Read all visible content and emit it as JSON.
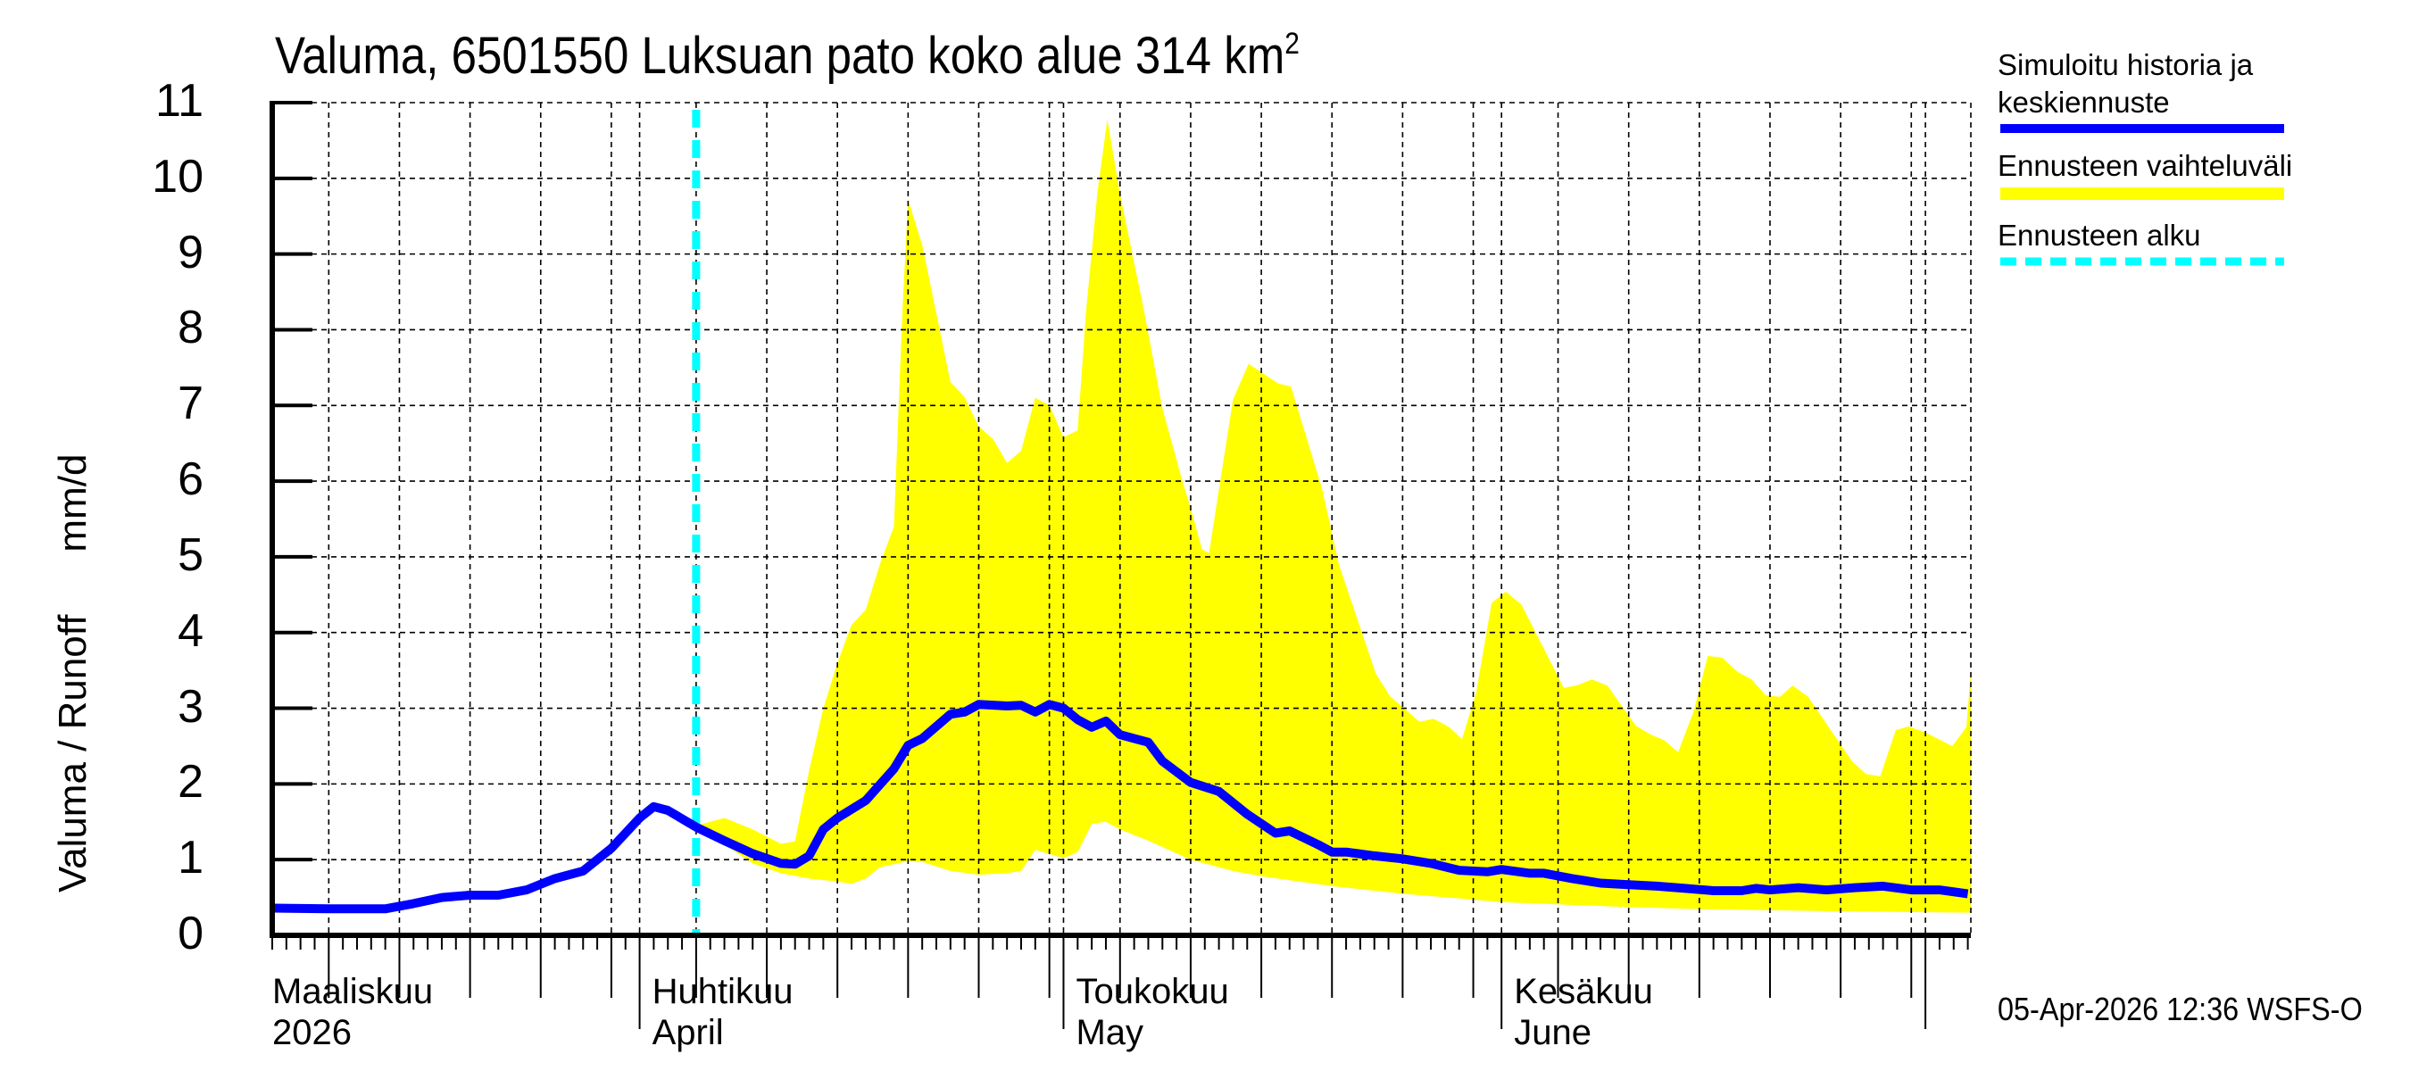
{
  "title": {
    "text": "Valuma, 6501550 Luksuan pato koko alue 314 km",
    "sup": "2"
  },
  "y_axis": {
    "label": "Valuma / Runoff",
    "unit": "mm/d",
    "ticks": [
      "0",
      "1",
      "2",
      "3",
      "4",
      "5",
      "6",
      "7",
      "8",
      "9",
      "10",
      "11"
    ]
  },
  "x_axis": {
    "months": [
      {
        "fi": "Maaliskuu",
        "en": "2026",
        "day": 0
      },
      {
        "fi": "Huhtikuu",
        "en": "April",
        "day": 26
      },
      {
        "fi": "Toukokuu",
        "en": "May",
        "day": 56
      },
      {
        "fi": "Kesäkuu",
        "en": "June",
        "day": 87
      }
    ]
  },
  "legend": {
    "items": [
      {
        "label_line1": "Simuloitu historia ja",
        "label_line2": "keskiennuste",
        "color": "#0000ff",
        "style": "solid"
      },
      {
        "label_line1": "Ennusteen vaihteluväli",
        "color": "#ffff00",
        "style": "band"
      },
      {
        "label_line1": "Ennusteen alku",
        "color": "#00ffff",
        "style": "dashed"
      }
    ]
  },
  "footer": {
    "timestamp": "05-Apr-2026 12:36 WSFS-O"
  },
  "colors": {
    "median": "#0000ff",
    "band": "#ffff00",
    "forecast_start": "#00ffff",
    "grid": "#000000"
  },
  "chart_data": {
    "type": "line",
    "title": "Valuma, 6501550 Luksuan pato koko alue 314 km²",
    "xlabel": "",
    "ylabel": "Valuma / Runoff mm/d",
    "ylim": [
      0,
      11
    ],
    "x_start_date": "2026-03-06",
    "x_end_date": "2026-07-03",
    "x_unit": "days since 2026-03-06",
    "xlim": [
      0,
      120
    ],
    "forecast_start_day": 30,
    "forecast_start_date": "2026-04-05",
    "grid": true,
    "legend_position": "right",
    "series": [
      {
        "name": "Simuloitu historia ja keskiennuste",
        "type": "line",
        "points": [
          [
            0,
            0.36
          ],
          [
            4,
            0.35
          ],
          [
            8,
            0.35
          ],
          [
            10,
            0.42
          ],
          [
            12,
            0.5
          ],
          [
            14,
            0.53
          ],
          [
            16,
            0.53
          ],
          [
            18,
            0.6
          ],
          [
            20,
            0.75
          ],
          [
            22,
            0.85
          ],
          [
            24,
            1.15
          ],
          [
            25,
            1.35
          ],
          [
            26,
            1.55
          ],
          [
            27,
            1.7
          ],
          [
            28,
            1.65
          ],
          [
            30,
            1.43
          ],
          [
            32,
            1.25
          ],
          [
            34,
            1.08
          ],
          [
            36,
            0.95
          ],
          [
            37,
            0.94
          ],
          [
            38,
            1.05
          ],
          [
            39,
            1.4
          ],
          [
            40,
            1.55
          ],
          [
            42,
            1.78
          ],
          [
            44,
            2.2
          ],
          [
            45,
            2.51
          ],
          [
            46,
            2.6
          ],
          [
            48,
            2.92
          ],
          [
            49,
            2.95
          ],
          [
            50,
            3.05
          ],
          [
            52,
            3.03
          ],
          [
            53,
            3.04
          ],
          [
            54,
            2.95
          ],
          [
            55,
            3.05
          ],
          [
            56,
            3.0
          ],
          [
            57,
            2.85
          ],
          [
            58,
            2.75
          ],
          [
            59,
            2.83
          ],
          [
            60,
            2.65
          ],
          [
            62,
            2.55
          ],
          [
            63,
            2.3
          ],
          [
            65,
            2.02
          ],
          [
            67,
            1.9
          ],
          [
            69,
            1.6
          ],
          [
            71,
            1.35
          ],
          [
            72,
            1.38
          ],
          [
            74,
            1.2
          ],
          [
            75,
            1.1
          ],
          [
            76,
            1.1
          ],
          [
            78,
            1.05
          ],
          [
            80,
            1.01
          ],
          [
            82,
            0.95
          ],
          [
            84,
            0.86
          ],
          [
            86,
            0.84
          ],
          [
            87,
            0.87
          ],
          [
            89,
            0.82
          ],
          [
            90,
            0.82
          ],
          [
            92,
            0.75
          ],
          [
            94,
            0.69
          ],
          [
            96,
            0.67
          ],
          [
            98,
            0.65
          ],
          [
            100,
            0.62
          ],
          [
            102,
            0.59
          ],
          [
            104,
            0.59
          ],
          [
            105,
            0.62
          ],
          [
            106,
            0.6
          ],
          [
            108,
            0.63
          ],
          [
            110,
            0.6
          ],
          [
            112,
            0.63
          ],
          [
            114,
            0.65
          ],
          [
            116,
            0.6
          ],
          [
            118,
            0.6
          ],
          [
            120,
            0.55
          ]
        ]
      },
      {
        "name": "Ennusteen vaihteluväli (upper)",
        "type": "area_upper",
        "points": [
          [
            30,
            1.45
          ],
          [
            32,
            1.55
          ],
          [
            34,
            1.4
          ],
          [
            36,
            1.21
          ],
          [
            37,
            1.24
          ],
          [
            38,
            2.18
          ],
          [
            39,
            3.0
          ],
          [
            40,
            3.6
          ],
          [
            41,
            4.1
          ],
          [
            42,
            4.3
          ],
          [
            43,
            4.9
          ],
          [
            44,
            5.4
          ],
          [
            44.6,
            8.25
          ],
          [
            45,
            9.72
          ],
          [
            46,
            9.12
          ],
          [
            48,
            7.31
          ],
          [
            49,
            7.11
          ],
          [
            50,
            6.72
          ],
          [
            51,
            6.56
          ],
          [
            52,
            6.24
          ],
          [
            53,
            6.4
          ],
          [
            54,
            7.1
          ],
          [
            55,
            7.0
          ],
          [
            56,
            6.58
          ],
          [
            57,
            6.67
          ],
          [
            57.6,
            8.25
          ],
          [
            58.4,
            9.82
          ],
          [
            59.1,
            10.78
          ],
          [
            60,
            9.79
          ],
          [
            61.7,
            8.25
          ],
          [
            63,
            6.96
          ],
          [
            64.4,
            6.01
          ],
          [
            65.1,
            5.58
          ],
          [
            65.8,
            5.1
          ],
          [
            66.3,
            5.05
          ],
          [
            68,
            7.08
          ],
          [
            69.1,
            7.55
          ],
          [
            71.2,
            7.29
          ],
          [
            72.1,
            7.25
          ],
          [
            74.3,
            5.9
          ],
          [
            75.5,
            4.89
          ],
          [
            78.1,
            3.46
          ],
          [
            79.1,
            3.16
          ],
          [
            81.2,
            2.82
          ],
          [
            82.2,
            2.86
          ],
          [
            83.3,
            2.75
          ],
          [
            84.2,
            2.59
          ],
          [
            85.2,
            3.2
          ],
          [
            86.3,
            4.39
          ],
          [
            87.3,
            4.54
          ],
          [
            88.4,
            4.37
          ],
          [
            91.4,
            3.27
          ],
          [
            92.3,
            3.3
          ],
          [
            93.4,
            3.38
          ],
          [
            94.5,
            3.3
          ],
          [
            96.5,
            2.77
          ],
          [
            97.6,
            2.65
          ],
          [
            98.5,
            2.58
          ],
          [
            99.5,
            2.42
          ],
          [
            100.6,
            2.96
          ],
          [
            101.6,
            3.69
          ],
          [
            102.6,
            3.67
          ],
          [
            103.7,
            3.48
          ],
          [
            104.7,
            3.38
          ],
          [
            105.7,
            3.17
          ],
          [
            106.7,
            3.15
          ],
          [
            107.6,
            3.3
          ],
          [
            108.7,
            3.15
          ],
          [
            111.8,
            2.3
          ],
          [
            112.8,
            2.13
          ],
          [
            113.8,
            2.1
          ],
          [
            114.9,
            2.71
          ],
          [
            115.8,
            2.76
          ],
          [
            117,
            2.68
          ],
          [
            118.9,
            2.5
          ],
          [
            119.9,
            2.75
          ],
          [
            121,
            3.49
          ]
        ]
      },
      {
        "name": "Ennusteen vaihteluväli (lower)",
        "type": "area_lower",
        "points": [
          [
            30,
            1.43
          ],
          [
            32,
            1.2
          ],
          [
            34,
            0.95
          ],
          [
            36,
            0.82
          ],
          [
            38,
            0.75
          ],
          [
            40,
            0.71
          ],
          [
            41,
            0.68
          ],
          [
            42,
            0.75
          ],
          [
            43,
            0.9
          ],
          [
            45,
            0.98
          ],
          [
            46,
            0.97
          ],
          [
            48,
            0.85
          ],
          [
            50,
            0.8
          ],
          [
            52,
            0.82
          ],
          [
            53,
            0.85
          ],
          [
            54,
            1.13
          ],
          [
            56,
            1.02
          ],
          [
            57,
            1.1
          ],
          [
            58,
            1.47
          ],
          [
            59,
            1.5
          ],
          [
            60,
            1.4
          ],
          [
            62,
            1.25
          ],
          [
            65,
            1.0
          ],
          [
            68,
            0.85
          ],
          [
            70,
            0.78
          ],
          [
            75,
            0.65
          ],
          [
            80,
            0.55
          ],
          [
            87,
            0.44
          ],
          [
            95,
            0.38
          ],
          [
            100,
            0.35
          ],
          [
            110,
            0.32
          ],
          [
            121,
            0.3
          ]
        ]
      }
    ]
  }
}
